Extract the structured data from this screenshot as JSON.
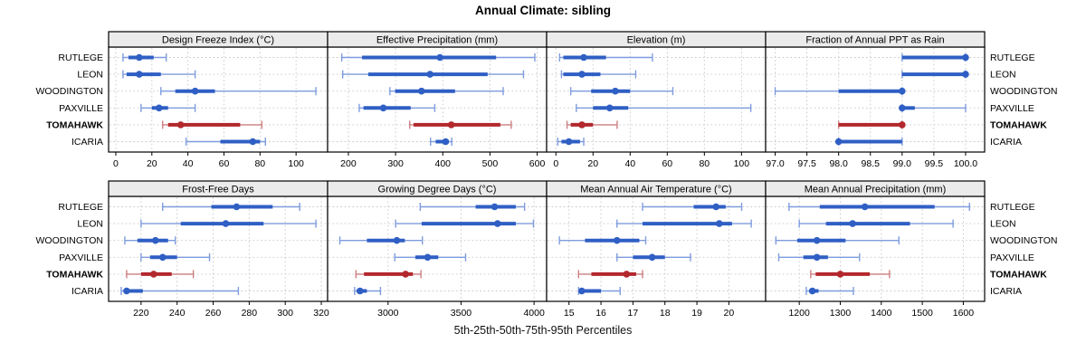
{
  "title": "Annual Climate: sibling",
  "xlabel": "5th-25th-50th-75th-95th Percentiles",
  "percentile_labels": [
    "5th",
    "25th",
    "50th",
    "75th",
    "95th"
  ],
  "sites": [
    "RUTLEGE",
    "LEON",
    "WOODINGTON",
    "PAXVILLE",
    "TOMAHAWK",
    "ICARIA"
  ],
  "highlighted_site": "TOMAHAWK",
  "colors": {
    "blue": "#2F5FC4",
    "blue_light": "#7E9CDE",
    "red": "#B3282D",
    "red_light": "#CC7E80",
    "strip_bg": "#EBEBEB",
    "grid": "#CBCBCB",
    "border": "#000000",
    "tick_text": "#111111"
  },
  "chart_data": {
    "type": "dotplot-intervals",
    "layout": "2 rows x 4 cols trellis",
    "legend_position": "none",
    "grid": "dotted",
    "panels": [
      {
        "title": "Design Freeze Index (°C)",
        "row": 0,
        "col": 0,
        "xlim": [
          -4,
          117.5
        ],
        "ticks": [
          0,
          20,
          40,
          60,
          80,
          100
        ],
        "tick_labels": [
          "0",
          "20",
          "40",
          "60",
          "80",
          "100"
        ],
        "series": [
          {
            "site": "RUTLEGE",
            "percentiles": [
              4,
              7,
              13,
              21,
              28
            ]
          },
          {
            "site": "LEON",
            "percentiles": [
              4,
              6,
              13,
              25,
              44
            ]
          },
          {
            "site": "WOODINGTON",
            "percentiles": [
              25,
              33,
              44,
              55,
              111
            ]
          },
          {
            "site": "PAXVILLE",
            "percentiles": [
              14,
              20,
              24,
              29,
              44
            ]
          },
          {
            "site": "TOMAHAWK",
            "percentiles": [
              26,
              29,
              36,
              69,
              81
            ]
          },
          {
            "site": "ICARIA",
            "percentiles": [
              39,
              58,
              76,
              80,
              83
            ]
          }
        ]
      },
      {
        "title": "Effective Precipitation (mm)",
        "row": 0,
        "col": 1,
        "xlim": [
          156,
          620
        ],
        "ticks": [
          200,
          300,
          400,
          500,
          600
        ],
        "tick_labels": [
          "200",
          "300",
          "400",
          "500",
          "600"
        ],
        "series": [
          {
            "site": "RUTLEGE",
            "percentiles": [
              186,
              229,
              394,
              513,
              595
            ]
          },
          {
            "site": "LEON",
            "percentiles": [
              188,
              242,
              373,
              495,
              571
            ]
          },
          {
            "site": "WOODINGTON",
            "percentiles": [
              288,
              299,
              355,
              426,
              528
            ]
          },
          {
            "site": "PAXVILLE",
            "percentiles": [
              223,
              232,
              274,
              332,
              383
            ]
          },
          {
            "site": "TOMAHAWK",
            "percentiles": [
              330,
              338,
              418,
              522,
              545
            ]
          },
          {
            "site": "ICARIA",
            "percentiles": [
              374,
              385,
              406,
              413,
              419
            ]
          }
        ]
      },
      {
        "title": "Elevation (m)",
        "row": 0,
        "col": 2,
        "xlim": [
          -5,
          113
        ],
        "ticks": [
          0,
          20,
          40,
          60,
          80,
          100
        ],
        "tick_labels": [
          "0",
          "20",
          "40",
          "60",
          "80",
          "100"
        ],
        "series": [
          {
            "site": "RUTLEGE",
            "percentiles": [
              2,
              4,
              15,
              27,
              52
            ]
          },
          {
            "site": "LEON",
            "percentiles": [
              3,
              4,
              14,
              24,
              43
            ]
          },
          {
            "site": "WOODINGTON",
            "percentiles": [
              8,
              19,
              32,
              40,
              63
            ]
          },
          {
            "site": "PAXVILLE",
            "percentiles": [
              11,
              20,
              29,
              39,
              105
            ]
          },
          {
            "site": "TOMAHAWK",
            "percentiles": [
              6,
              8,
              14,
              20,
              33
            ]
          },
          {
            "site": "ICARIA",
            "percentiles": [
              1,
              3,
              7,
              13,
              15
            ]
          }
        ]
      },
      {
        "title": "Fraction of Annual PPT as Rain",
        "row": 0,
        "col": 3,
        "xlim": [
          96.85,
          100.3
        ],
        "ticks": [
          97,
          97.5,
          98,
          98.5,
          99,
          99.5,
          100
        ],
        "tick_labels": [
          "97.0",
          "97.5",
          "98.0",
          "98.5",
          "99.0",
          "99.5",
          "100.0"
        ],
        "series": [
          {
            "site": "RUTLEGE",
            "percentiles": [
              99,
              99,
              100,
              100,
              100
            ]
          },
          {
            "site": "LEON",
            "percentiles": [
              99,
              99,
              100,
              100,
              100
            ]
          },
          {
            "site": "WOODINGTON",
            "percentiles": [
              97,
              98,
              99,
              99,
              99
            ]
          },
          {
            "site": "PAXVILLE",
            "percentiles": [
              99,
              99,
              99,
              99.2,
              100
            ]
          },
          {
            "site": "TOMAHAWK",
            "percentiles": [
              98,
              98,
              99,
              99,
              99
            ]
          },
          {
            "site": "ICARIA",
            "percentiles": [
              98,
              98,
              98,
              99,
              99
            ]
          }
        ]
      },
      {
        "title": "Frost-Free Days",
        "row": 1,
        "col": 0,
        "xlim": [
          202,
          323.5
        ],
        "ticks": [
          220,
          240,
          260,
          280,
          300,
          320
        ],
        "tick_labels": [
          "220",
          "240",
          "260",
          "280",
          "300",
          "320"
        ],
        "series": [
          {
            "site": "RUTLEGE",
            "percentiles": [
              232,
              259,
              273,
              293,
              308
            ]
          },
          {
            "site": "LEON",
            "percentiles": [
              220,
              242,
              267,
              288,
              317
            ]
          },
          {
            "site": "WOODINGTON",
            "percentiles": [
              211,
              218,
              228,
              235,
              239
            ]
          },
          {
            "site": "PAXVILLE",
            "percentiles": [
              220,
              225,
              232,
              240,
              258
            ]
          },
          {
            "site": "TOMAHAWK",
            "percentiles": [
              212,
              220,
              227,
              237,
              249
            ]
          },
          {
            "site": "ICARIA",
            "percentiles": [
              209,
              211,
              212,
              221,
              274
            ]
          }
        ]
      },
      {
        "title": "Growing Degree Days (°C)",
        "row": 1,
        "col": 1,
        "xlim": [
          2586,
          4086
        ],
        "ticks": [
          3000,
          3500,
          4000
        ],
        "tick_labels": [
          "3000",
          "3500",
          "4000"
        ],
        "series": [
          {
            "site": "RUTLEGE",
            "percentiles": [
              3220,
              3600,
              3730,
              3875,
              3935
            ]
          },
          {
            "site": "LEON",
            "percentiles": [
              3052,
              3230,
              3750,
              3875,
              3996
            ]
          },
          {
            "site": "WOODINGTON",
            "percentiles": [
              2670,
              2855,
              3060,
              3115,
              3235
            ]
          },
          {
            "site": "PAXVILLE",
            "percentiles": [
              3046,
              3187,
              3271,
              3344,
              3531
            ]
          },
          {
            "site": "TOMAHAWK",
            "percentiles": [
              2780,
              2835,
              3120,
              3170,
              3225
            ]
          },
          {
            "site": "ICARIA",
            "percentiles": [
              2771,
              2785,
              2808,
              2855,
              2948
            ]
          }
        ]
      },
      {
        "title": "Mean Annual Air Temperature (°C)",
        "row": 1,
        "col": 2,
        "xlim": [
          14.3,
          21.15
        ],
        "ticks": [
          15,
          16,
          17,
          18,
          19,
          20
        ],
        "tick_labels": [
          "15",
          "16",
          "17",
          "18",
          "19",
          "20"
        ],
        "series": [
          {
            "site": "RUTLEGE",
            "percentiles": [
              17.3,
              18.9,
              19.6,
              19.9,
              20.4
            ]
          },
          {
            "site": "LEON",
            "percentiles": [
              16.5,
              17.3,
              19.7,
              20.1,
              20.7
            ]
          },
          {
            "site": "WOODINGTON",
            "percentiles": [
              14.7,
              15.5,
              16.5,
              17.2,
              17.4
            ]
          },
          {
            "site": "PAXVILLE",
            "percentiles": [
              16.5,
              17.0,
              17.6,
              18.0,
              18.8
            ]
          },
          {
            "site": "TOMAHAWK",
            "percentiles": [
              15.3,
              15.7,
              16.8,
              17.1,
              17.3
            ]
          },
          {
            "site": "ICARIA",
            "percentiles": [
              15.3,
              15.3,
              15.4,
              16.0,
              16.6
            ]
          }
        ]
      },
      {
        "title": "Mean Annual Precipitation (mm)",
        "row": 1,
        "col": 3,
        "xlim": [
          1118,
          1652
        ],
        "ticks": [
          1200,
          1300,
          1400,
          1500,
          1600
        ],
        "tick_labels": [
          "1200",
          "1300",
          "1400",
          "1500",
          "1600"
        ],
        "series": [
          {
            "site": "RUTLEGE",
            "percentiles": [
              1175,
              1250,
              1360,
              1530,
              1615
            ]
          },
          {
            "site": "LEON",
            "percentiles": [
              1200,
              1265,
              1330,
              1470,
              1575
            ]
          },
          {
            "site": "WOODINGTON",
            "percentiles": [
              1143,
              1195,
              1243,
              1313,
              1443
            ]
          },
          {
            "site": "PAXVILLE",
            "percentiles": [
              1150,
              1210,
              1243,
              1270,
              1347
            ]
          },
          {
            "site": "TOMAHAWK",
            "percentiles": [
              1228,
              1240,
              1300,
              1372,
              1420
            ]
          },
          {
            "site": "ICARIA",
            "percentiles": [
              1217,
              1224,
              1232,
              1247,
              1332
            ]
          }
        ]
      }
    ]
  }
}
